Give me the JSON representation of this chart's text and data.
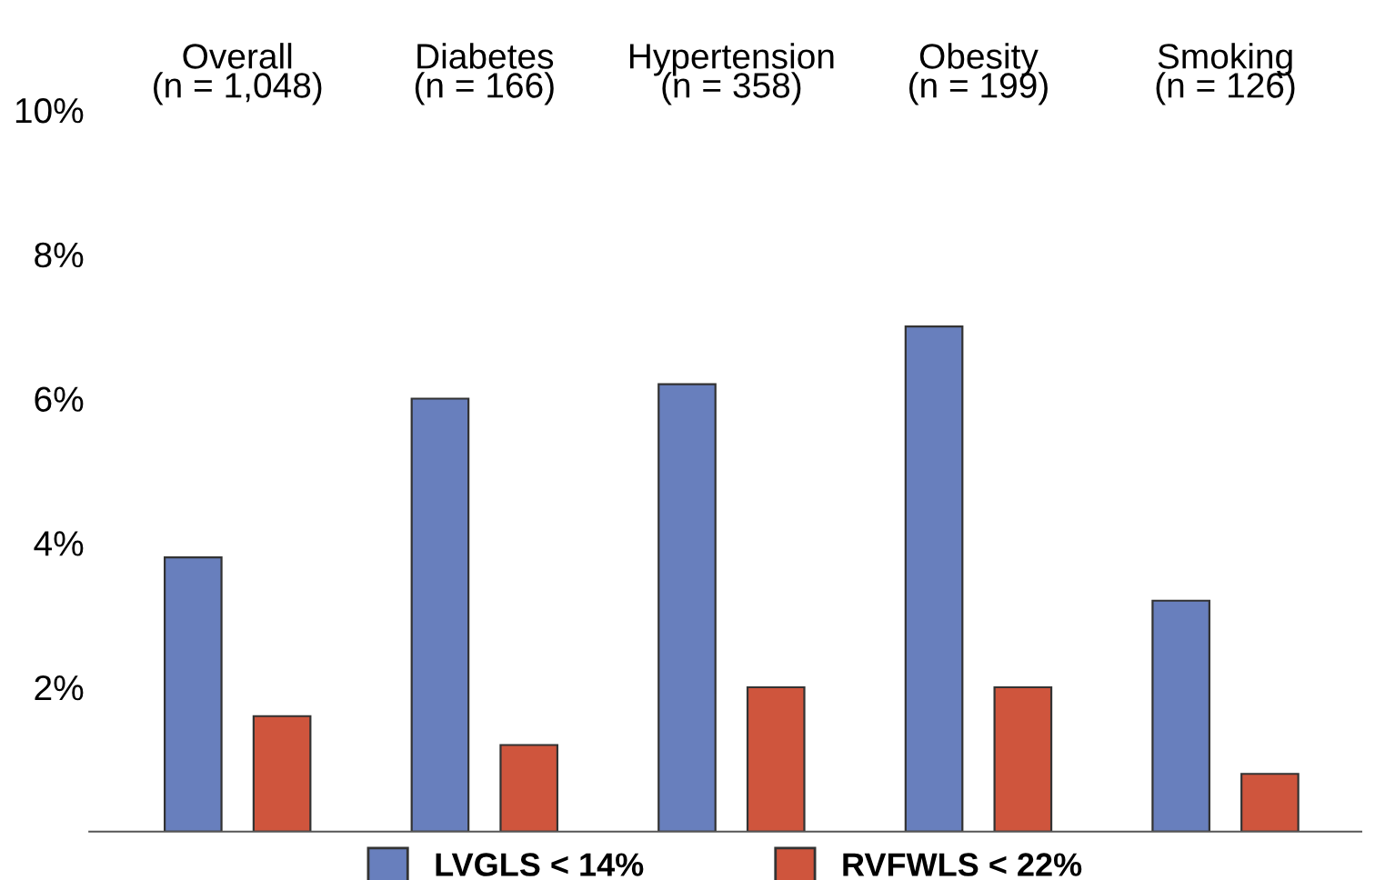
{
  "chart_data": {
    "type": "bar",
    "categories": [
      "Overall\n(n = 1,048)",
      "Diabetes\n(n = 166)",
      "Hypertension\n(n = 358)",
      "Obesity\n(n = 199)",
      "Smoking\n(n = 126)"
    ],
    "series": [
      {
        "name": "LVGLS < 14%",
        "color": "#687fbd",
        "values": [
          3.8,
          6.0,
          6.2,
          7.0,
          3.2
        ]
      },
      {
        "name": "RVFWLS < 22%",
        "color": "#cf553d",
        "values": [
          1.6,
          1.2,
          2.0,
          2.0,
          0.8
        ]
      }
    ],
    "ylim": [
      0,
      10
    ],
    "yticks": [
      {
        "value": 2,
        "label": "2%"
      },
      {
        "value": 4,
        "label": "4%"
      },
      {
        "value": 6,
        "label": "6%"
      },
      {
        "value": 8,
        "label": "8%"
      },
      {
        "value": 10,
        "label": "10%"
      }
    ],
    "grid": false,
    "legend": "bottom"
  }
}
